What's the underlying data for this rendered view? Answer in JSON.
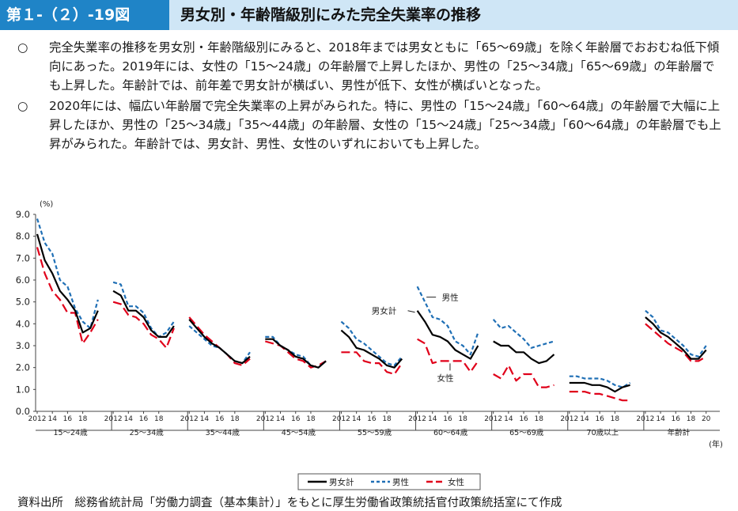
{
  "header": {
    "figure_number": "第１-（２）-19図",
    "title": "男女別・年齢階級別にみた完全失業率の推移"
  },
  "summary": [
    {
      "mark": "○",
      "text": "完全失業率の推移を男女別・年齢階級別にみると、2018年までは男女ともに「65～69歳」を除く年齢層でおおむね低下傾向にあった。2019年には、女性の「15～24歳」の年齢層で上昇したほか、男性の「25～34歳」「65～69歳」の年齢層でも上昇した。年齢計では、前年差で男女計が横ばい、男性が低下、女性が横ばいとなった。"
    },
    {
      "mark": "○",
      "text": "2020年には、幅広い年齢層で完全失業率の上昇がみられた。特に、男性の「15～24歳」「60～64歳」の年齢層で大幅に上昇したほか、男性の「25～34歳」「35～44歳」の年齢層、女性の「15～24歳」「25～34歳」「60～64歳」の年齢層でも上昇がみられた。年齢計では、男女計、男性、女性のいずれにおいても上昇した。"
    }
  ],
  "source": "資料出所　総務省統計局「労働力調査（基本集計）」をもとに厚生労働省政策統括官付政策統括室にて作成",
  "chart_data": {
    "type": "line",
    "ylabel": "(%)",
    "xlabel": "(年)",
    "ylim": [
      0,
      9
    ],
    "yticks": [
      "0.0",
      "1.0",
      "2.0",
      "3.0",
      "4.0",
      "5.0",
      "6.0",
      "7.0",
      "8.0",
      "9.0"
    ],
    "years": [
      2012,
      2013,
      2014,
      2015,
      2016,
      2017,
      2018,
      2019,
      2020
    ],
    "tick_labels": [
      "2012",
      "14",
      "16",
      "18"
    ],
    "last_group_tick_labels": [
      "2012",
      "14",
      "16",
      "18",
      "20"
    ],
    "grid": false,
    "legend_position": "bottom",
    "groups": [
      {
        "name": "15～24歳",
        "series": {
          "total": [
            8.1,
            6.9,
            6.3,
            5.5,
            5.1,
            4.6,
            3.6,
            3.8,
            4.6
          ],
          "male": [
            8.8,
            7.7,
            7.2,
            6.0,
            5.7,
            4.7,
            4.1,
            3.8,
            5.1
          ],
          "female": [
            7.5,
            6.3,
            5.5,
            5.1,
            4.5,
            4.5,
            3.1,
            3.6,
            4.2
          ]
        }
      },
      {
        "name": "25～34歳",
        "series": {
          "total": [
            5.5,
            5.3,
            4.6,
            4.6,
            4.3,
            3.7,
            3.4,
            3.4,
            3.9
          ],
          "male": [
            5.9,
            5.8,
            4.8,
            4.8,
            4.5,
            3.8,
            3.4,
            3.6,
            4.1
          ],
          "female": [
            5.0,
            4.9,
            4.4,
            4.3,
            4.0,
            3.5,
            3.3,
            2.9,
            3.8
          ]
        }
      },
      {
        "name": "35～44歳",
        "series": {
          "total": [
            4.2,
            3.8,
            3.4,
            3.1,
            2.9,
            2.6,
            2.3,
            2.2,
            2.5
          ],
          "male": [
            3.9,
            3.6,
            3.3,
            3.0,
            2.9,
            2.6,
            2.3,
            2.2,
            2.7
          ],
          "female": [
            4.3,
            3.9,
            3.5,
            3.2,
            2.9,
            2.6,
            2.2,
            2.1,
            2.4
          ]
        }
      },
      {
        "name": "45～54歳",
        "series": {
          "total": [
            3.3,
            3.3,
            3.0,
            2.8,
            2.5,
            2.4,
            2.1,
            2.0,
            2.3
          ],
          "male": [
            3.4,
            3.4,
            3.0,
            2.8,
            2.6,
            2.5,
            2.1,
            2.0,
            2.3
          ],
          "female": [
            3.2,
            3.1,
            3.0,
            2.7,
            2.4,
            2.3,
            2.0,
            2.1,
            2.3
          ]
        }
      },
      {
        "name": "55～59歳",
        "series": {
          "total": [
            3.7,
            3.4,
            2.9,
            2.8,
            2.6,
            2.4,
            2.1,
            2.0,
            2.4
          ],
          "male": [
            4.1,
            3.8,
            3.3,
            3.1,
            2.8,
            2.5,
            2.2,
            2.1,
            2.5
          ],
          "female": [
            2.7,
            2.7,
            2.7,
            2.3,
            2.2,
            2.2,
            1.8,
            1.7,
            2.2
          ]
        }
      },
      {
        "name": "60～64歳",
        "series": {
          "total": [
            4.6,
            4.1,
            3.5,
            3.4,
            3.2,
            2.8,
            2.6,
            2.4,
            3.0
          ],
          "male": [
            5.7,
            5.0,
            4.3,
            4.2,
            3.9,
            3.2,
            3.0,
            2.6,
            3.6
          ],
          "female": [
            3.3,
            3.1,
            2.2,
            2.3,
            2.3,
            2.3,
            2.3,
            1.8,
            2.3
          ]
        }
      },
      {
        "name": "65～69歳",
        "series": {
          "total": [
            3.2,
            3.0,
            3.0,
            2.7,
            2.7,
            2.4,
            2.2,
            2.3,
            2.6
          ],
          "male": [
            4.2,
            3.8,
            3.9,
            3.6,
            3.3,
            2.9,
            3.0,
            3.1,
            3.2
          ],
          "female": [
            1.7,
            1.5,
            2.1,
            1.4,
            1.7,
            1.7,
            1.1,
            1.1,
            1.2
          ]
        }
      },
      {
        "name": "70歳以上",
        "series": {
          "total": [
            1.3,
            1.3,
            1.3,
            1.2,
            1.2,
            1.1,
            0.9,
            1.1,
            1.2
          ],
          "male": [
            1.6,
            1.6,
            1.5,
            1.5,
            1.5,
            1.4,
            1.2,
            1.1,
            1.3
          ],
          "female": [
            0.9,
            0.9,
            0.9,
            0.8,
            0.8,
            0.7,
            0.6,
            0.5,
            0.5
          ]
        }
      },
      {
        "name": "年齢計",
        "series": {
          "total": [
            4.3,
            4.0,
            3.6,
            3.4,
            3.1,
            2.8,
            2.4,
            2.4,
            2.8
          ],
          "male": [
            4.6,
            4.3,
            3.7,
            3.6,
            3.3,
            3.0,
            2.6,
            2.5,
            3.0
          ],
          "female": [
            4.0,
            3.7,
            3.4,
            3.1,
            2.9,
            2.7,
            2.3,
            2.3,
            2.5
          ]
        }
      }
    ],
    "legend": [
      {
        "key": "total",
        "label": "男女計",
        "color": "#000000",
        "dash": "solid"
      },
      {
        "key": "male",
        "label": "男性",
        "color": "#1f6fb5",
        "dash": "dashed"
      },
      {
        "key": "female",
        "label": "女性",
        "color": "#e0001a",
        "dash": "dashed"
      }
    ],
    "annotations": [
      {
        "text": "男性",
        "group": 5,
        "year_index": 1,
        "value": 5.0,
        "series": "male"
      },
      {
        "text": "男女計",
        "group": 5,
        "year_index": 0,
        "value": 4.6,
        "series": "total"
      },
      {
        "text": "女性",
        "group": 5,
        "year_index": 4,
        "value": 2.3,
        "series": "female"
      }
    ]
  }
}
